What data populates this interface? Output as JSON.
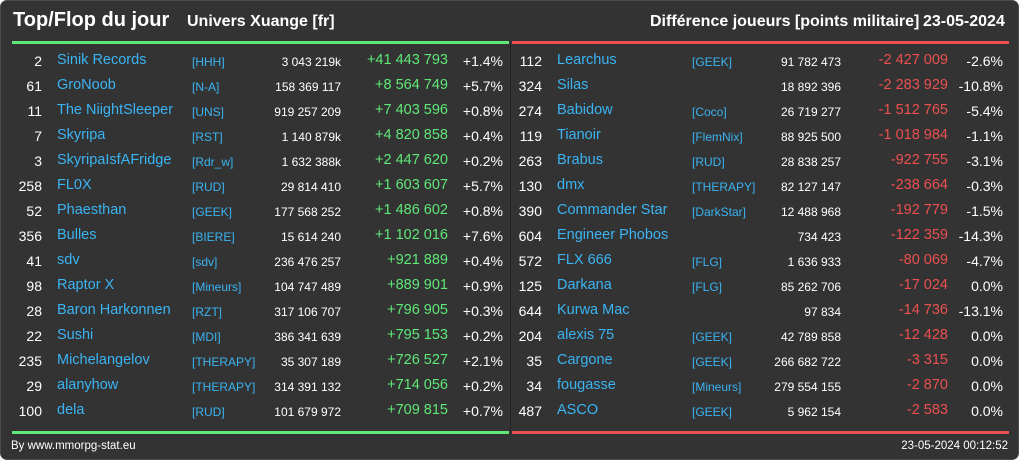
{
  "header": {
    "title": "Top/Flop du jour",
    "universe": "Univers Xuange [fr]",
    "metric": "Différence joueurs [points militaire]",
    "date": "23-05-2024"
  },
  "colors": {
    "background": "#333333",
    "name": "#3ab4f2",
    "gain": "#5fe878",
    "loss": "#ec5050"
  },
  "top": [
    {
      "rank": "2",
      "name": "Sinik Records",
      "alliance": "[HHH]",
      "points": "3 043 219k",
      "diff": "+41 443 793",
      "pct": "+1.4%"
    },
    {
      "rank": "61",
      "name": "GroNoob",
      "alliance": "[N-A]",
      "points": "158 369 117",
      "diff": "+8 564 749",
      "pct": "+5.7%"
    },
    {
      "rank": "11",
      "name": "The NiightSleeper",
      "alliance": "[UNS]",
      "points": "919 257 209",
      "diff": "+7 403 596",
      "pct": "+0.8%"
    },
    {
      "rank": "7",
      "name": "Skyripa",
      "alliance": "[RST]",
      "points": "1 140 879k",
      "diff": "+4 820 858",
      "pct": "+0.4%"
    },
    {
      "rank": "3",
      "name": "SkyripaIsfAFridge",
      "alliance": "[Rdr_w]",
      "points": "1 632 388k",
      "diff": "+2 447 620",
      "pct": "+0.2%"
    },
    {
      "rank": "258",
      "name": "FL0X",
      "alliance": "[RUD]",
      "points": "29 814 410",
      "diff": "+1 603 607",
      "pct": "+5.7%"
    },
    {
      "rank": "52",
      "name": "Phaesthan",
      "alliance": "[GEEK]",
      "points": "177 568 252",
      "diff": "+1 486 602",
      "pct": "+0.8%"
    },
    {
      "rank": "356",
      "name": "Bulles",
      "alliance": "[BIERE]",
      "points": "15 614 240",
      "diff": "+1 102 016",
      "pct": "+7.6%"
    },
    {
      "rank": "41",
      "name": "sdv",
      "alliance": "[sdv]",
      "points": "236 476 257",
      "diff": "+921 889",
      "pct": "+0.4%"
    },
    {
      "rank": "98",
      "name": "Raptor X",
      "alliance": "[Mineurs]",
      "points": "104 747 489",
      "diff": "+889 901",
      "pct": "+0.9%"
    },
    {
      "rank": "28",
      "name": "Baron Harkonnen",
      "alliance": "[RZT]",
      "points": "317 106 707",
      "diff": "+796 905",
      "pct": "+0.3%"
    },
    {
      "rank": "22",
      "name": "Sushi",
      "alliance": "[MDI]",
      "points": "386 341 639",
      "diff": "+795 153",
      "pct": "+0.2%"
    },
    {
      "rank": "235",
      "name": "Michelangelov",
      "alliance": "[THERAPY]",
      "points": "35 307 189",
      "diff": "+726 527",
      "pct": "+2.1%"
    },
    {
      "rank": "29",
      "name": "alanyhow",
      "alliance": "[THERAPY]",
      "points": "314 391 132",
      "diff": "+714 056",
      "pct": "+0.2%"
    },
    {
      "rank": "100",
      "name": "dela",
      "alliance": "[RUD]",
      "points": "101 679 972",
      "diff": "+709 815",
      "pct": "+0.7%"
    }
  ],
  "flop": [
    {
      "rank": "112",
      "name": "Learchus",
      "alliance": "[GEEK]",
      "points": "91 782 473",
      "diff": "-2 427 009",
      "pct": "-2.6%"
    },
    {
      "rank": "324",
      "name": "Silas",
      "alliance": "",
      "points": "18 892 396",
      "diff": "-2 283 929",
      "pct": "-10.8%"
    },
    {
      "rank": "274",
      "name": "Babidow",
      "alliance": "[Coco]",
      "points": "26 719 277",
      "diff": "-1 512 765",
      "pct": "-5.4%"
    },
    {
      "rank": "119",
      "name": "Tianoir",
      "alliance": "[FlemNix]",
      "points": "88 925 500",
      "diff": "-1 018 984",
      "pct": "-1.1%"
    },
    {
      "rank": "263",
      "name": "Brabus",
      "alliance": "[RUD]",
      "points": "28 838 257",
      "diff": "-922 755",
      "pct": "-3.1%"
    },
    {
      "rank": "130",
      "name": "dmx",
      "alliance": "[THERAPY]",
      "points": "82 127 147",
      "diff": "-238 664",
      "pct": "-0.3%"
    },
    {
      "rank": "390",
      "name": "Commander Star",
      "alliance": "[DarkStar]",
      "points": "12 488 968",
      "diff": "-192 779",
      "pct": "-1.5%"
    },
    {
      "rank": "604",
      "name": "Engineer Phobos",
      "alliance": "",
      "points": "734 423",
      "diff": "-122 359",
      "pct": "-14.3%"
    },
    {
      "rank": "572",
      "name": "FLX 666",
      "alliance": "[FLG]",
      "points": "1 636 933",
      "diff": "-80 069",
      "pct": "-4.7%"
    },
    {
      "rank": "125",
      "name": "Darkana",
      "alliance": "[FLG]",
      "points": "85 262 706",
      "diff": "-17 024",
      "pct": "0.0%"
    },
    {
      "rank": "644",
      "name": "Kurwa Mac",
      "alliance": "",
      "points": "97 834",
      "diff": "-14 736",
      "pct": "-13.1%"
    },
    {
      "rank": "204",
      "name": "alexis 75",
      "alliance": "[GEEK]",
      "points": "42 789 858",
      "diff": "-12 428",
      "pct": "0.0%"
    },
    {
      "rank": "35",
      "name": "Cargone",
      "alliance": "[GEEK]",
      "points": "266 682 722",
      "diff": "-3 315",
      "pct": "0.0%"
    },
    {
      "rank": "34",
      "name": "fougasse",
      "alliance": "[Mineurs]",
      "points": "279 554 155",
      "diff": "-2 870",
      "pct": "0.0%"
    },
    {
      "rank": "487",
      "name": "ASCO",
      "alliance": "[GEEK]",
      "points": "5 962 154",
      "diff": "-2 583",
      "pct": "0.0%"
    }
  ],
  "footer": {
    "source": "By www.mmorpg-stat.eu",
    "timestamp": "23-05-2024 00:12:52"
  }
}
